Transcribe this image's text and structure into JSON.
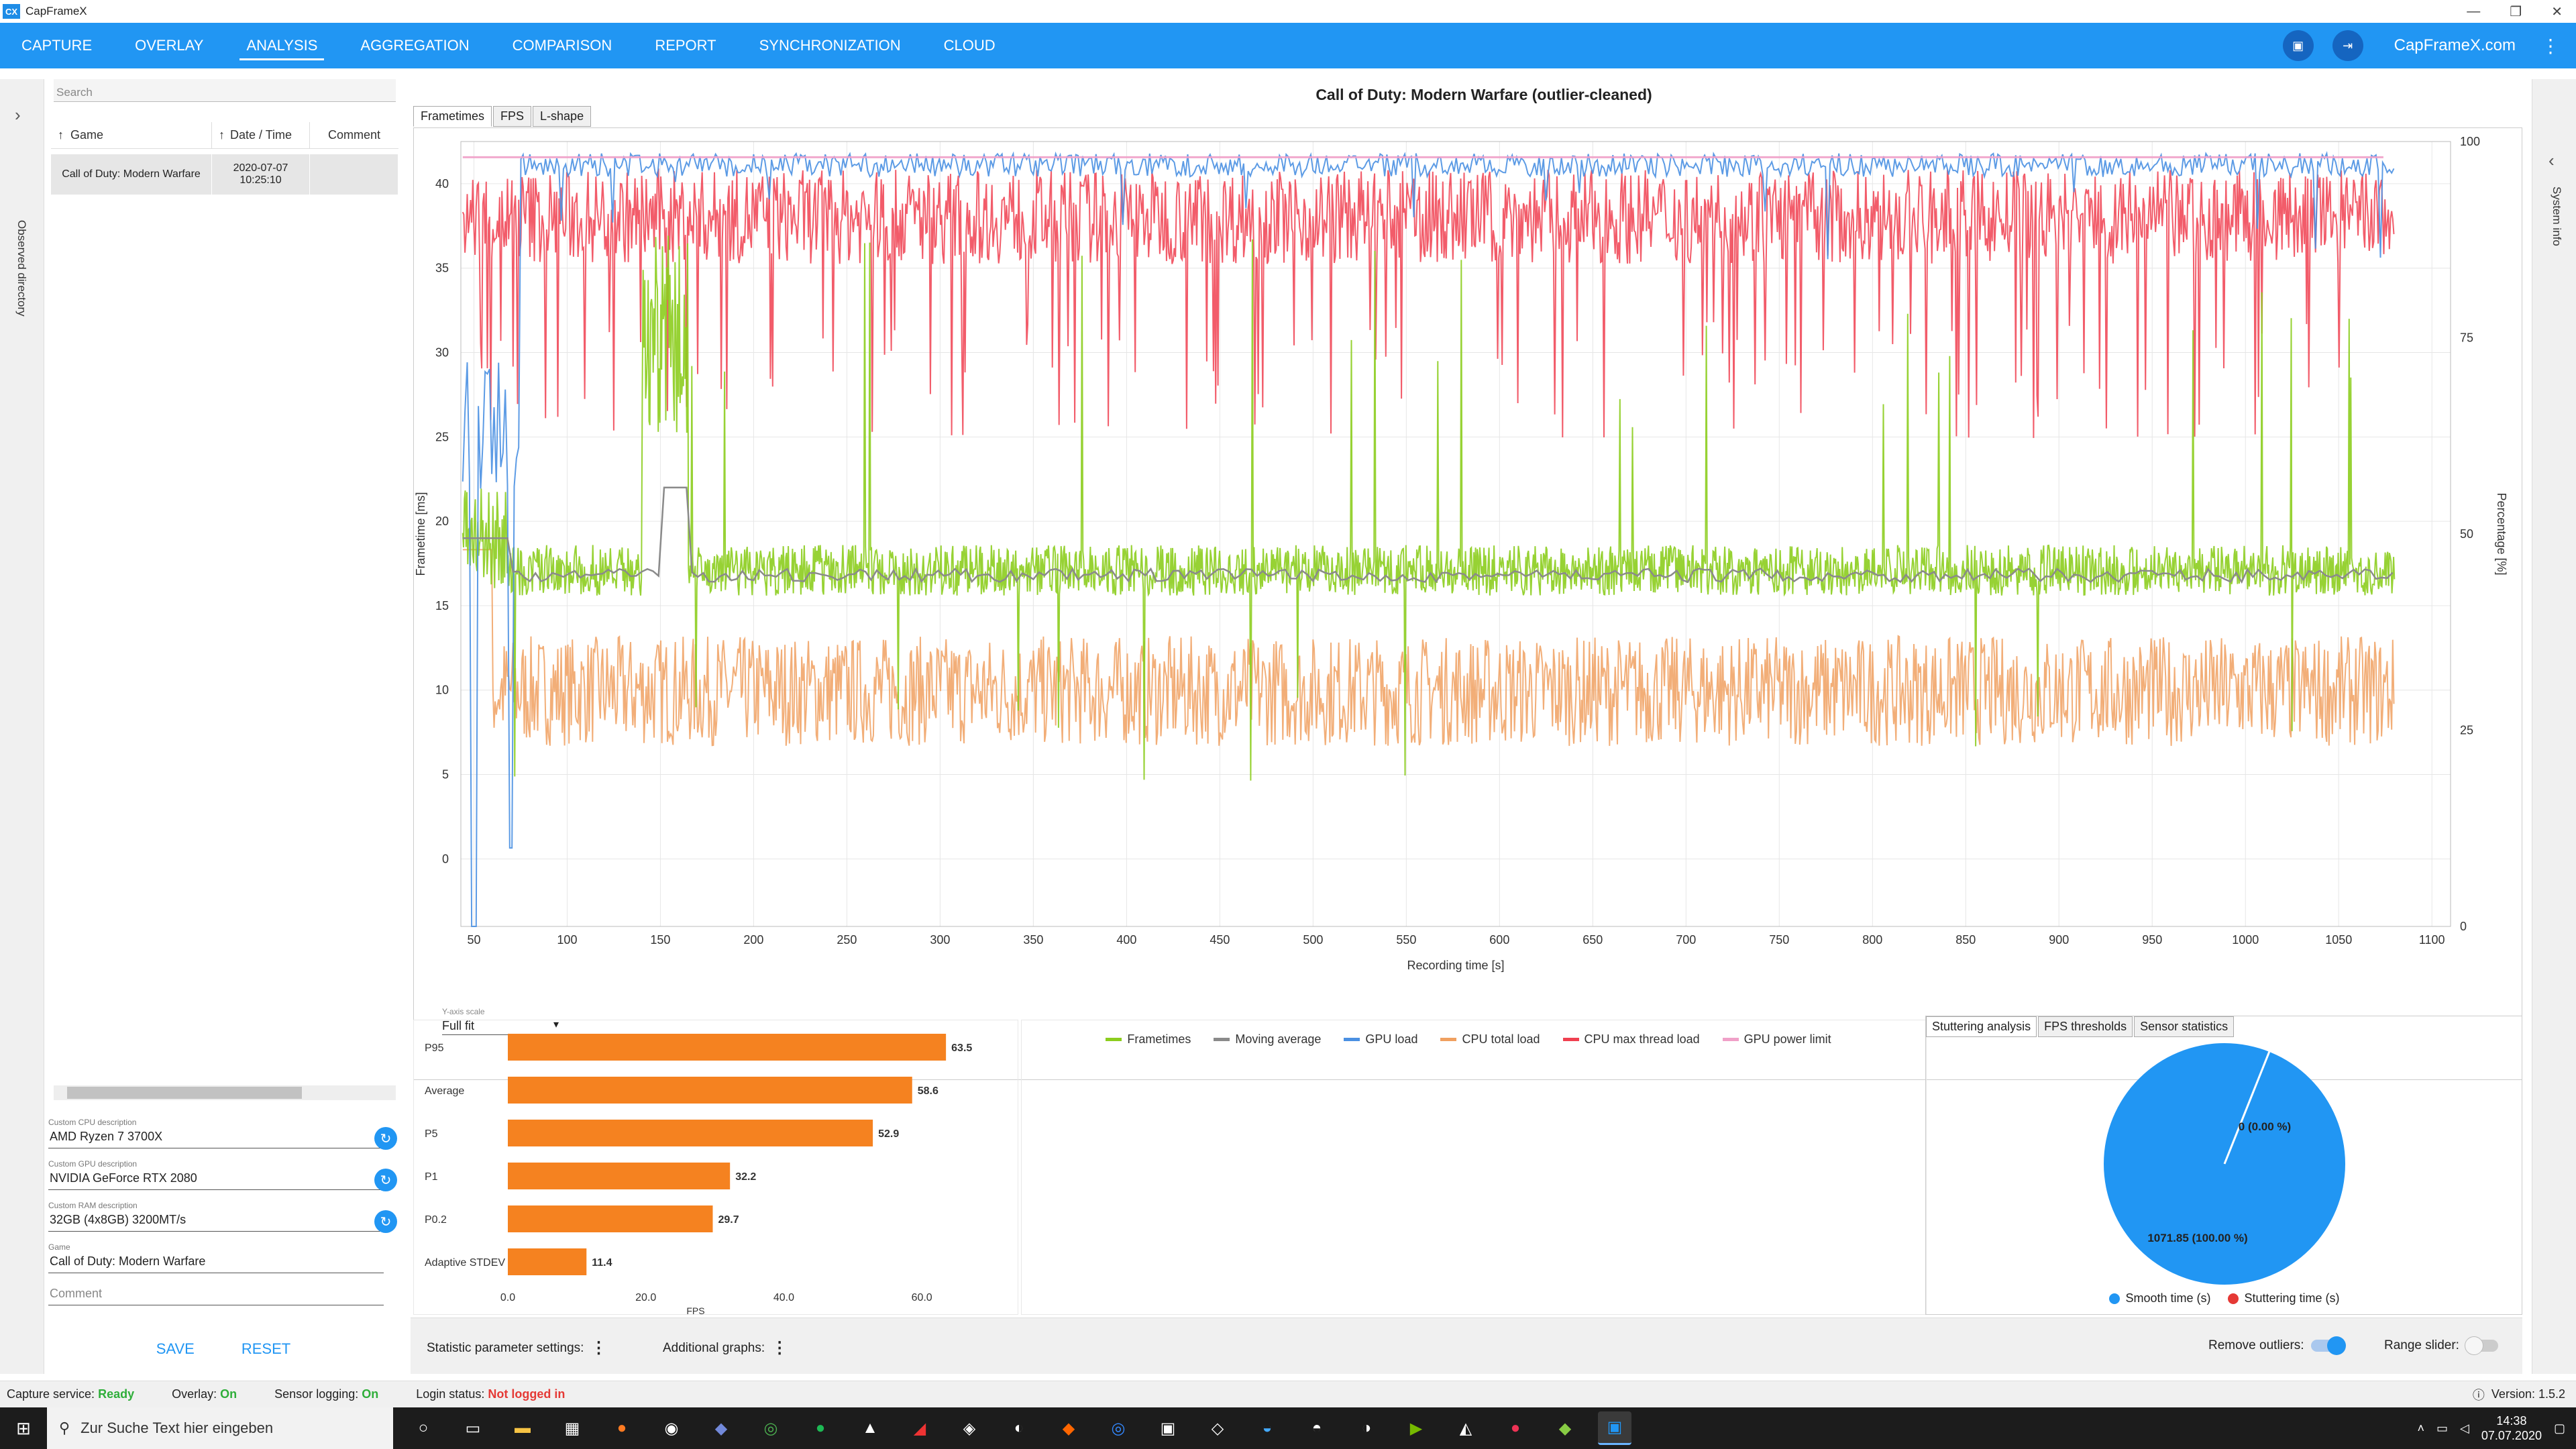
{
  "window": {
    "title": "CapFrameX",
    "logo": "CX"
  },
  "nav": {
    "tabs": [
      "CAPTURE",
      "OVERLAY",
      "ANALYSIS",
      "AGGREGATION",
      "COMPARISON",
      "REPORT",
      "SYNCHRONIZATION",
      "CLOUD"
    ],
    "active": "ANALYSIS",
    "site": "CapFrameX.com"
  },
  "left_strip": {
    "label": "Observed directory"
  },
  "right_strip": {
    "label": "System info"
  },
  "sidebar": {
    "search_placeholder": "Search",
    "columns": [
      "Game",
      "Date / Time",
      "Comment"
    ],
    "rows": [
      {
        "game": "Call of Duty: Modern Warfare",
        "date": "2020-07-07",
        "time": "10:25:10",
        "comment": ""
      }
    ],
    "fields": [
      {
        "label": "Custom CPU description",
        "value": "AMD Ryzen 7 3700X",
        "refresh": true
      },
      {
        "label": "Custom GPU description",
        "value": "NVIDIA GeForce RTX 2080",
        "refresh": true
      },
      {
        "label": "Custom RAM description",
        "value": "32GB (4x8GB) 3200MT/s",
        "refresh": true
      },
      {
        "label": "Game",
        "value": "Call of Duty: Modern Warfare",
        "refresh": false
      },
      {
        "label": "",
        "value": "Comment",
        "refresh": false,
        "placeholder": true
      }
    ],
    "save": "SAVE",
    "reset": "RESET"
  },
  "chart_tabs": [
    "Frametimes",
    "FPS",
    "L-shape"
  ],
  "chart_data": [
    {
      "type": "line",
      "title": "Call of Duty: Modern Warfare (outlier-cleaned)",
      "xlabel": "Recording time [s]",
      "ylabel": "Frametime [ms]",
      "y2label": "Percentage [%]",
      "xlim": [
        43,
        1110
      ],
      "ylim": [
        -4,
        42.5
      ],
      "y2lim": [
        0,
        100
      ],
      "xticks": [
        50,
        100,
        150,
        200,
        250,
        300,
        350,
        400,
        450,
        500,
        550,
        600,
        650,
        700,
        750,
        800,
        850,
        900,
        950,
        1000,
        1050,
        1100
      ],
      "yticks": [
        0,
        5,
        10,
        15,
        20,
        25,
        30,
        35,
        40
      ],
      "y2ticks": [
        0,
        25,
        50,
        75,
        100
      ],
      "grid": true,
      "legend_position": "bottom",
      "series": [
        {
          "name": "Frametimes",
          "axis": "left",
          "color": "#8ccd1e",
          "approx_level": 17.1,
          "x_range": [
            44,
            1080
          ]
        },
        {
          "name": "Moving average",
          "axis": "left",
          "color": "#8a8a8a",
          "approx_level": 16.8,
          "x_range": [
            44,
            1080
          ]
        },
        {
          "name": "GPU load",
          "axis": "right",
          "color": "#4a90e2",
          "approx_level": 97,
          "x_range": [
            44,
            1080
          ]
        },
        {
          "name": "CPU total load",
          "axis": "right",
          "color": "#f0a060",
          "approx_level": 30,
          "x_range": [
            44,
            1080
          ]
        },
        {
          "name": "CPU max thread load",
          "axis": "right",
          "color": "#f04050",
          "approx_level": 88,
          "x_range": [
            44,
            1080
          ]
        },
        {
          "name": "GPU power limit",
          "axis": "right",
          "color": "#f0a0c8",
          "approx_level": 98,
          "x_range": [
            44,
            1080
          ]
        }
      ]
    },
    {
      "type": "bar",
      "orientation": "horizontal",
      "categories": [
        "P95",
        "Average",
        "P5",
        "P1",
        "P0.2",
        "Adaptive STDEV"
      ],
      "values": [
        63.5,
        58.6,
        52.9,
        32.2,
        29.7,
        11.4
      ],
      "xlabel": "FPS",
      "xlim": [
        0,
        70
      ],
      "xticks": [
        0.0,
        20.0,
        40.0,
        60.0
      ],
      "color": "#f58220"
    },
    {
      "type": "pie",
      "slices": [
        {
          "name": "Smooth time (s)",
          "value": 1071.85,
          "label": "1071.85 (100.00 %)",
          "color": "#2196f3"
        },
        {
          "name": "Stuttering time (s)",
          "value": 0,
          "label": "0 (0.00 %)",
          "color": "#e53935"
        }
      ]
    }
  ],
  "y_axis_scale": {
    "label": "Y-axis scale",
    "value": "Full fit"
  },
  "stat_tabs": [
    "Stuttering analysis",
    "FPS thresholds",
    "Sensor statistics"
  ],
  "bottom": {
    "stat_params": "Statistic parameter settings:",
    "additional": "Additional graphs:",
    "remove_outliers": "Remove outliers:",
    "range_slider": "Range slider:"
  },
  "status": {
    "capture_label": "Capture service:",
    "capture_value": "Ready",
    "overlay_label": "Overlay:",
    "overlay_value": "On",
    "sensor_label": "Sensor logging:",
    "sensor_value": "On",
    "login_label": "Login status:",
    "login_value": "Not logged in",
    "version": "Version:  1.5.2"
  },
  "taskbar": {
    "search_placeholder": "Zur Suche Text hier eingeben",
    "time": "14:38",
    "date": "07.07.2020"
  }
}
